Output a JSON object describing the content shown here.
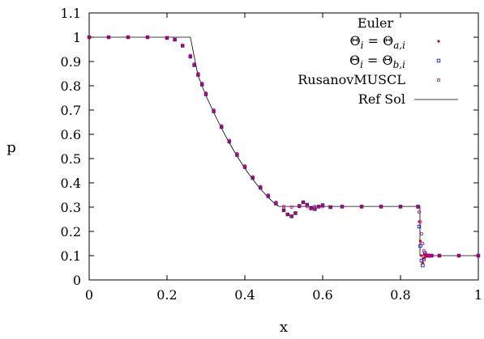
{
  "chart_data": {
    "type": "scatter",
    "xlabel": "x",
    "ylabel": "p",
    "xlim": [
      0,
      1
    ],
    "ylim": [
      0,
      1.1
    ],
    "x_ticks": [
      "0",
      "0.2",
      "0.4",
      "0.6",
      "0.8",
      "1"
    ],
    "y_ticks": [
      "0",
      "0.1",
      "0.2",
      "0.3",
      "0.4",
      "0.5",
      "0.6",
      "0.7",
      "0.8",
      "0.9",
      "1",
      "1.1"
    ],
    "grid": false,
    "legend": {
      "title": "Euler",
      "placement": "top-right",
      "entries": [
        {
          "label": "Θ_i = Θ_{a,i}",
          "marker": "dot",
          "color": "#d40000"
        },
        {
          "label": "Θ_i = Θ_{b,i}",
          "marker": "square",
          "color": "#1a1ac8"
        },
        {
          "label": "RusanovMUSCL",
          "marker": "circle",
          "color": "#b0008c"
        },
        {
          "label": "Ref Sol",
          "marker": "line",
          "color": "#000000"
        }
      ]
    },
    "series": [
      {
        "name": "Θ_i = Θ_{a,i}",
        "color": "#d40000",
        "x": [
          0.0,
          0.05,
          0.1,
          0.15,
          0.2,
          0.22,
          0.24,
          0.26,
          0.27,
          0.28,
          0.29,
          0.3,
          0.32,
          0.34,
          0.36,
          0.38,
          0.4,
          0.42,
          0.44,
          0.46,
          0.48,
          0.5,
          0.51,
          0.52,
          0.53,
          0.54,
          0.55,
          0.56,
          0.57,
          0.58,
          0.59,
          0.6,
          0.62,
          0.65,
          0.7,
          0.75,
          0.8,
          0.845,
          0.848,
          0.851,
          0.854,
          0.857,
          0.86,
          0.863,
          0.866,
          0.869,
          0.872,
          0.876,
          0.88,
          0.9,
          0.95,
          1.0
        ],
        "y": [
          1.0,
          1.0,
          1.0,
          1.0,
          0.997,
          0.99,
          0.965,
          0.92,
          0.885,
          0.845,
          0.805,
          0.765,
          0.695,
          0.63,
          0.57,
          0.515,
          0.465,
          0.42,
          0.38,
          0.345,
          0.315,
          0.287,
          0.27,
          0.262,
          0.275,
          0.305,
          0.32,
          0.31,
          0.295,
          0.292,
          0.302,
          0.308,
          0.3,
          0.302,
          0.302,
          0.302,
          0.302,
          0.302,
          0.24,
          0.16,
          0.1,
          0.07,
          0.09,
          0.105,
          0.098,
          0.1,
          0.1,
          0.1,
          0.1,
          0.1,
          0.1,
          0.1
        ]
      },
      {
        "name": "Θ_i = Θ_{b,i}",
        "color": "#1a1ac8",
        "x": [
          0.0,
          0.05,
          0.1,
          0.15,
          0.2,
          0.22,
          0.24,
          0.26,
          0.27,
          0.28,
          0.29,
          0.3,
          0.32,
          0.34,
          0.36,
          0.38,
          0.4,
          0.42,
          0.44,
          0.46,
          0.48,
          0.5,
          0.51,
          0.52,
          0.53,
          0.54,
          0.55,
          0.56,
          0.57,
          0.58,
          0.59,
          0.6,
          0.62,
          0.65,
          0.7,
          0.75,
          0.8,
          0.845,
          0.848,
          0.851,
          0.854,
          0.857,
          0.86,
          0.863,
          0.866,
          0.869,
          0.872,
          0.876,
          0.88,
          0.9,
          0.95,
          1.0
        ],
        "y": [
          1.0,
          1.0,
          1.0,
          1.0,
          0.997,
          0.99,
          0.965,
          0.92,
          0.885,
          0.845,
          0.805,
          0.765,
          0.695,
          0.63,
          0.57,
          0.515,
          0.465,
          0.42,
          0.38,
          0.345,
          0.315,
          0.287,
          0.27,
          0.262,
          0.275,
          0.305,
          0.32,
          0.31,
          0.295,
          0.292,
          0.302,
          0.308,
          0.3,
          0.302,
          0.302,
          0.302,
          0.302,
          0.302,
          0.22,
          0.14,
          0.08,
          0.06,
          0.085,
          0.11,
          0.1,
          0.1,
          0.1,
          0.1,
          0.1,
          0.1,
          0.1,
          0.1
        ]
      },
      {
        "name": "RusanovMUSCL",
        "color": "#b0008c",
        "x": [
          0.0,
          0.05,
          0.1,
          0.15,
          0.2,
          0.22,
          0.24,
          0.26,
          0.27,
          0.28,
          0.29,
          0.3,
          0.32,
          0.34,
          0.36,
          0.38,
          0.4,
          0.42,
          0.44,
          0.46,
          0.48,
          0.5,
          0.52,
          0.54,
          0.56,
          0.58,
          0.6,
          0.65,
          0.7,
          0.75,
          0.8,
          0.845,
          0.848,
          0.851,
          0.854,
          0.857,
          0.86,
          0.863,
          0.866,
          0.87,
          0.875,
          0.88,
          0.9,
          0.95,
          1.0
        ],
        "y": [
          1.0,
          1.0,
          1.0,
          1.0,
          0.997,
          0.99,
          0.965,
          0.925,
          0.89,
          0.85,
          0.81,
          0.77,
          0.7,
          0.635,
          0.575,
          0.52,
          0.47,
          0.425,
          0.385,
          0.35,
          0.32,
          0.302,
          0.3,
          0.302,
          0.302,
          0.302,
          0.302,
          0.302,
          0.302,
          0.302,
          0.302,
          0.3,
          0.28,
          0.24,
          0.19,
          0.15,
          0.12,
          0.11,
          0.1,
          0.1,
          0.1,
          0.1,
          0.1,
          0.1,
          0.1
        ]
      },
      {
        "name": "Ref Sol",
        "color": "#000000",
        "type": "line",
        "x": [
          0.0,
          0.26,
          0.28,
          0.3,
          0.32,
          0.34,
          0.36,
          0.38,
          0.4,
          0.42,
          0.44,
          0.46,
          0.48,
          0.488,
          0.5,
          0.6,
          0.7,
          0.8,
          0.85,
          0.85,
          1.0
        ],
        "y": [
          1.0,
          1.0,
          0.84,
          0.76,
          0.69,
          0.625,
          0.565,
          0.51,
          0.46,
          0.415,
          0.375,
          0.34,
          0.31,
          0.303,
          0.303,
          0.303,
          0.303,
          0.303,
          0.303,
          0.1,
          0.1
        ]
      }
    ]
  }
}
